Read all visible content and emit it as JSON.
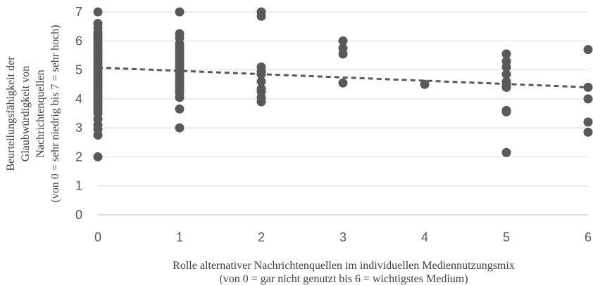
{
  "chart_data": {
    "type": "scatter",
    "xlabel_lines": [
      "Rolle alternativer Nachrichtenquellen im individuellen Mediennutzungsmix",
      "(von 0 = gar nicht genutzt bis 6 = wichtigstes Medium)"
    ],
    "ylabel_lines": [
      "Beurteilungsfähigkeit der",
      "Glaubwürdigkeit von",
      "Nachrichtenquellen",
      "(von 0 = sehr niedrig bis 7 = sehr hoch)"
    ],
    "xlim": [
      0,
      6
    ],
    "ylim": [
      0,
      7
    ],
    "x_ticks": [
      0,
      1,
      2,
      3,
      4,
      5,
      6
    ],
    "y_ticks": [
      0,
      1,
      2,
      3,
      4,
      5,
      6,
      7
    ],
    "grid": "horizontal",
    "marker_color": "#595959",
    "trendline": {
      "style": "dashed",
      "color": "#595959",
      "points": [
        [
          0,
          5.08
        ],
        [
          6,
          4.4
        ]
      ]
    },
    "points": [
      [
        0,
        7.0
      ],
      [
        0,
        6.6
      ],
      [
        0,
        6.45
      ],
      [
        0,
        6.3
      ],
      [
        0,
        6.2
      ],
      [
        0,
        6.1
      ],
      [
        0,
        6.0
      ],
      [
        0,
        5.9
      ],
      [
        0,
        5.8
      ],
      [
        0,
        5.7
      ],
      [
        0,
        5.6
      ],
      [
        0,
        5.5
      ],
      [
        0,
        5.4
      ],
      [
        0,
        5.3
      ],
      [
        0,
        5.2
      ],
      [
        0,
        5.1
      ],
      [
        0,
        5.0
      ],
      [
        0,
        4.9
      ],
      [
        0,
        4.8
      ],
      [
        0,
        4.7
      ],
      [
        0,
        4.6
      ],
      [
        0,
        4.5
      ],
      [
        0,
        4.4
      ],
      [
        0,
        4.3
      ],
      [
        0,
        4.2
      ],
      [
        0,
        4.1
      ],
      [
        0,
        4.0
      ],
      [
        0,
        3.9
      ],
      [
        0,
        3.8
      ],
      [
        0,
        3.7
      ],
      [
        0,
        3.6
      ],
      [
        0,
        3.5
      ],
      [
        0,
        3.3
      ],
      [
        0,
        3.1
      ],
      [
        0,
        2.95
      ],
      [
        0,
        2.75
      ],
      [
        0,
        2.0
      ],
      [
        1,
        7.0
      ],
      [
        1,
        6.25
      ],
      [
        1,
        6.1
      ],
      [
        1,
        5.9
      ],
      [
        1,
        5.8
      ],
      [
        1,
        5.7
      ],
      [
        1,
        5.6
      ],
      [
        1,
        5.5
      ],
      [
        1,
        5.4
      ],
      [
        1,
        5.3
      ],
      [
        1,
        5.2
      ],
      [
        1,
        5.1
      ],
      [
        1,
        5.0
      ],
      [
        1,
        4.9
      ],
      [
        1,
        4.8
      ],
      [
        1,
        4.7
      ],
      [
        1,
        4.6
      ],
      [
        1,
        4.5
      ],
      [
        1,
        4.4
      ],
      [
        1,
        4.3
      ],
      [
        1,
        4.2
      ],
      [
        1,
        4.05
      ],
      [
        1,
        3.65
      ],
      [
        1,
        3.0
      ],
      [
        2,
        7.0
      ],
      [
        2,
        6.85
      ],
      [
        2,
        5.1
      ],
      [
        2,
        4.95
      ],
      [
        2,
        4.85
      ],
      [
        2,
        4.6
      ],
      [
        2,
        4.35
      ],
      [
        2,
        4.25
      ],
      [
        2,
        4.05
      ],
      [
        2,
        3.9
      ],
      [
        3,
        6.0
      ],
      [
        3,
        5.75
      ],
      [
        3,
        5.55
      ],
      [
        3,
        4.55
      ],
      [
        4,
        4.5
      ],
      [
        5,
        5.55
      ],
      [
        5,
        5.3
      ],
      [
        5,
        5.1
      ],
      [
        5,
        4.85
      ],
      [
        5,
        4.6
      ],
      [
        5,
        4.5
      ],
      [
        5,
        4.4
      ],
      [
        5,
        3.6
      ],
      [
        5,
        3.55
      ],
      [
        5,
        2.15
      ],
      [
        6,
        5.7
      ],
      [
        6,
        4.4
      ],
      [
        6,
        4.0
      ],
      [
        6,
        3.2
      ],
      [
        6,
        2.85
      ]
    ]
  }
}
